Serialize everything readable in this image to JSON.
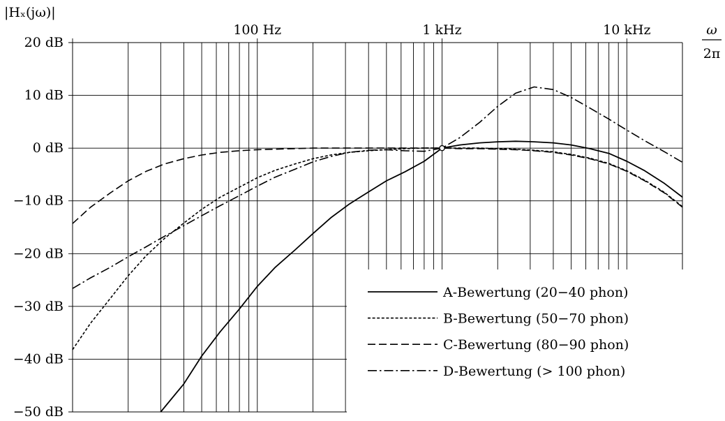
{
  "chart_data": {
    "type": "line",
    "ylabel": "|Hₓ(jω)|",
    "xlabel_numerator": "ω",
    "xlabel_denominator": "2π",
    "x_scale": "log",
    "xlim": [
      10,
      20000
    ],
    "ylim": [
      -50,
      20
    ],
    "x_ticks": [
      {
        "value": 100,
        "label": "100 Hz"
      },
      {
        "value": 1000,
        "label": "1 kHz"
      },
      {
        "value": 10000,
        "label": "10 kHz"
      }
    ],
    "y_ticks": [
      {
        "value": 20,
        "label": "20 dB"
      },
      {
        "value": 10,
        "label": "10 dB"
      },
      {
        "value": 0,
        "label": "0 dB"
      },
      {
        "value": -10,
        "label": "−10 dB"
      },
      {
        "value": -20,
        "label": "−20 dB"
      },
      {
        "value": -30,
        "label": "−30 dB"
      },
      {
        "value": -40,
        "label": "−40 dB"
      },
      {
        "value": -50,
        "label": "−50 dB"
      }
    ],
    "grid": true,
    "legend_position": "bottom-right",
    "reference_point": {
      "x": 1000,
      "y": 0
    },
    "series": [
      {
        "name": "A-Bewertung (20−40 phon)",
        "dash": "solid",
        "x": [
          30,
          40,
          50,
          63,
          80,
          100,
          125,
          160,
          200,
          250,
          315,
          400,
          500,
          630,
          800,
          1000,
          1250,
          1600,
          2000,
          2500,
          3150,
          4000,
          5000,
          6300,
          8000,
          10000,
          12500,
          16000,
          20000
        ],
        "y": [
          -50.0,
          -44.7,
          -39.4,
          -34.8,
          -30.5,
          -26.2,
          -22.6,
          -19.3,
          -16.2,
          -13.2,
          -10.6,
          -8.3,
          -6.2,
          -4.5,
          -2.5,
          0.0,
          0.6,
          1.0,
          1.2,
          1.3,
          1.2,
          1.0,
          0.6,
          -0.1,
          -1.0,
          -2.5,
          -4.3,
          -6.7,
          -9.3
        ]
      },
      {
        "name": "B-Bewertung (50−70 phon)",
        "dash": "dotted",
        "x": [
          10,
          12.5,
          16,
          20,
          25,
          31.5,
          40,
          50,
          63,
          80,
          100,
          125,
          160,
          200,
          250,
          315,
          400,
          500,
          630,
          800,
          1000,
          1250,
          1600,
          2000,
          2500,
          3150,
          4000,
          5000,
          6300,
          8000,
          10000,
          12500,
          16000,
          20000
        ],
        "y": [
          -38.2,
          -33.2,
          -28.5,
          -24.2,
          -20.4,
          -17.1,
          -14.2,
          -11.6,
          -9.3,
          -7.4,
          -5.6,
          -4.2,
          -3.0,
          -2.0,
          -1.3,
          -0.8,
          -0.5,
          -0.3,
          -0.1,
          0.0,
          0.0,
          0.0,
          0.0,
          -0.1,
          -0.2,
          -0.4,
          -0.7,
          -1.2,
          -1.9,
          -2.9,
          -4.3,
          -6.1,
          -8.4,
          -11.1
        ]
      },
      {
        "name": "C-Bewertung (80−90 phon)",
        "dash": "dashed",
        "x": [
          10,
          12.5,
          16,
          20,
          25,
          31.5,
          40,
          50,
          63,
          80,
          100,
          125,
          160,
          200,
          250,
          315,
          400,
          500,
          630,
          800,
          1000,
          1250,
          1600,
          2000,
          2500,
          3150,
          4000,
          5000,
          6300,
          8000,
          10000,
          12500,
          16000,
          20000
        ],
        "y": [
          -14.3,
          -11.2,
          -8.5,
          -6.2,
          -4.4,
          -3.0,
          -2.0,
          -1.3,
          -0.8,
          -0.5,
          -0.3,
          -0.2,
          -0.1,
          0.0,
          0.0,
          0.0,
          0.0,
          0.0,
          0.0,
          0.0,
          0.0,
          -0.1,
          -0.1,
          -0.2,
          -0.3,
          -0.5,
          -0.8,
          -1.3,
          -2.0,
          -3.0,
          -4.4,
          -6.2,
          -8.5,
          -11.2
        ]
      },
      {
        "name": "D-Bewertung (> 100 phon)",
        "dash": "dashdot",
        "x": [
          10,
          12.5,
          16,
          20,
          25,
          31.5,
          40,
          50,
          63,
          80,
          100,
          125,
          160,
          200,
          250,
          315,
          400,
          500,
          630,
          800,
          1000,
          1250,
          1600,
          2000,
          2500,
          3150,
          4000,
          5000,
          6300,
          8000,
          10000,
          12500,
          16000,
          20000
        ],
        "y": [
          -26.6,
          -24.6,
          -22.6,
          -20.6,
          -18.7,
          -16.7,
          -14.7,
          -12.8,
          -10.9,
          -9.0,
          -7.2,
          -5.5,
          -4.0,
          -2.6,
          -1.6,
          -0.8,
          -0.4,
          -0.3,
          -0.5,
          -0.6,
          0.0,
          2.0,
          4.9,
          7.9,
          10.4,
          11.6,
          11.1,
          9.6,
          7.6,
          5.5,
          3.4,
          1.4,
          -0.7,
          -2.7
        ]
      }
    ]
  }
}
